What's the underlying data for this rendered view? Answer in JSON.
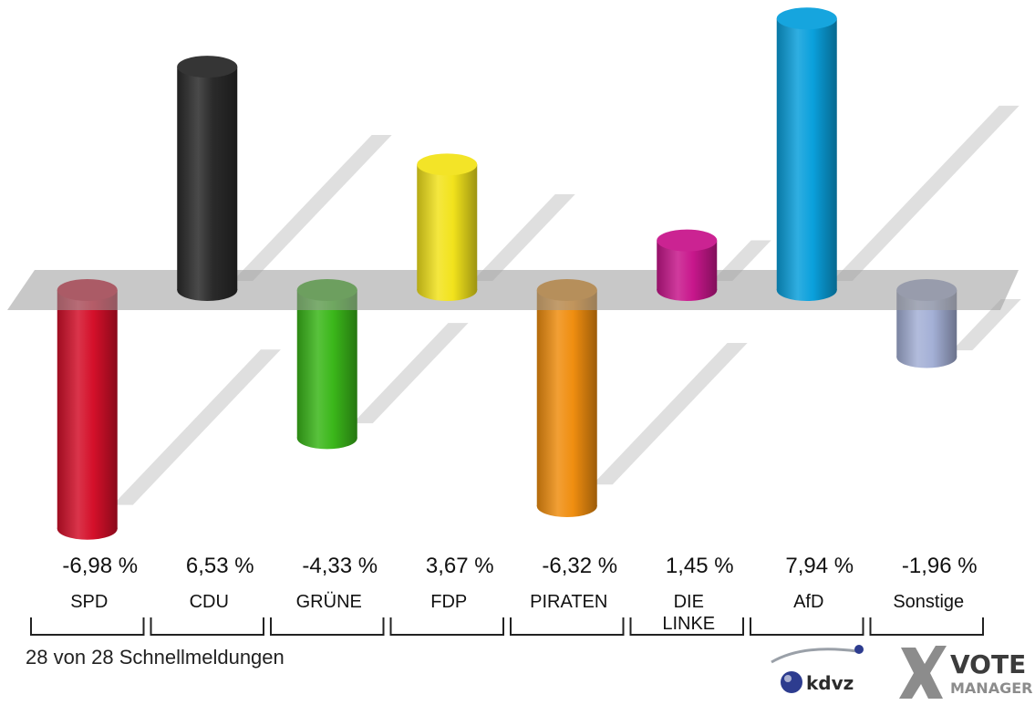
{
  "chart_data": {
    "type": "bar",
    "categories": [
      "SPD",
      "CDU",
      "GRÜNE",
      "FDP",
      "PIRATEN",
      "DIE LINKE",
      "AfD",
      "Sonstige"
    ],
    "category_lines": [
      [
        "SPD"
      ],
      [
        "CDU"
      ],
      [
        "GRÜNE"
      ],
      [
        "FDP"
      ],
      [
        "PIRATEN"
      ],
      [
        "DIE",
        "LINKE"
      ],
      [
        "AfD"
      ],
      [
        "Sonstige"
      ]
    ],
    "values": [
      -6.98,
      6.53,
      -4.33,
      3.67,
      -6.32,
      1.45,
      7.94,
      -1.96
    ],
    "value_labels": [
      "-6,98 %",
      "6,53 %",
      "-4,33 %",
      "3,67 %",
      "-6,32 %",
      "1,45 %",
      "7,94 %",
      "-1,96 %"
    ],
    "colors": [
      "#d4102a",
      "#2a2a2a",
      "#3bb71a",
      "#f2e31c",
      "#f08e10",
      "#c8178c",
      "#0aa0dc",
      "#a4b0d6"
    ],
    "ylim": [
      -7.5,
      8.5
    ],
    "grid": false,
    "legend": "none"
  },
  "footer": {
    "status_text": "28 von 28 Schnellmeldungen"
  },
  "logos": {
    "kdvz_text": "kdvz",
    "vote_text": "VOTE",
    "manager_text": "MANAGER"
  }
}
